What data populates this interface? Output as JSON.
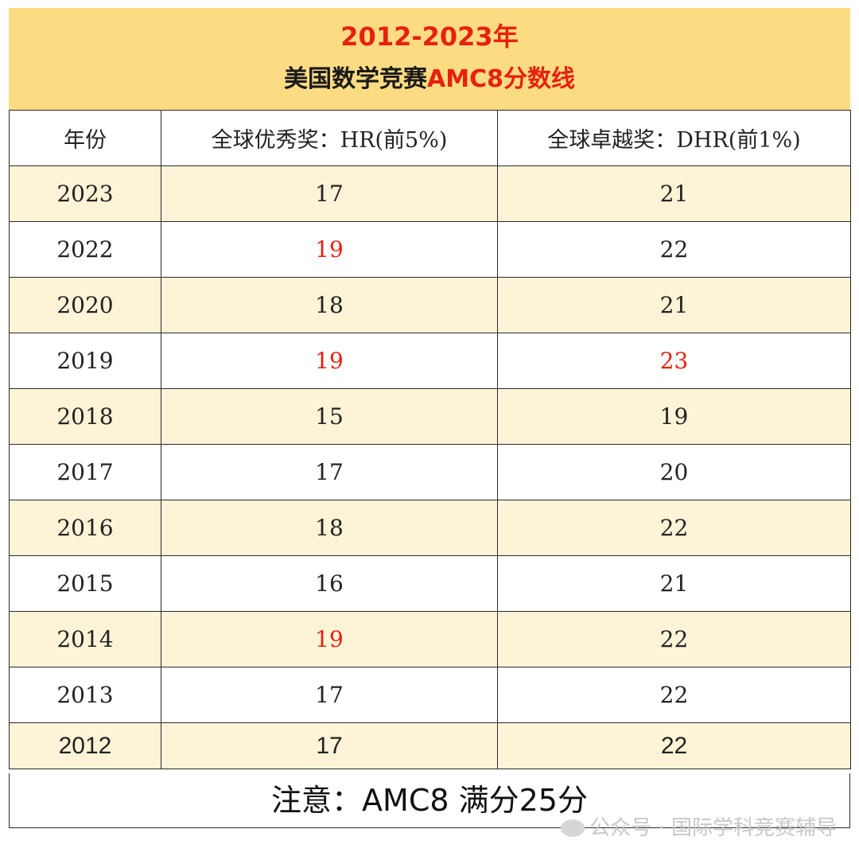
{
  "title": {
    "line1": "2012-2023年",
    "line2_prefix": "美国数学竞赛",
    "line2_accent": "AMC8分数线"
  },
  "columns": [
    "年份",
    "全球优秀奖：HR(前5%)",
    "全球卓越奖：DHR(前1%)"
  ],
  "rows": [
    {
      "year": "2023",
      "hr": "17",
      "dhr": "21"
    },
    {
      "year": "2022",
      "hr": "19",
      "dhr": "22"
    },
    {
      "year": "2020",
      "hr": "18",
      "dhr": "21"
    },
    {
      "year": "2019",
      "hr": "19",
      "dhr": "23"
    },
    {
      "year": "2018",
      "hr": "15",
      "dhr": "19"
    },
    {
      "year": "2017",
      "hr": "17",
      "dhr": "20"
    },
    {
      "year": "2016",
      "hr": "18",
      "dhr": "22"
    },
    {
      "year": "2015",
      "hr": "16",
      "dhr": "21"
    },
    {
      "year": "2014",
      "hr": "19",
      "dhr": "22"
    },
    {
      "year": "2013",
      "hr": "17",
      "dhr": "22"
    },
    {
      "year": "2012",
      "hr": "17",
      "dhr": "22"
    }
  ],
  "note": "注意：AMC8 满分25分",
  "watermark": "公众号 · 国际学科竞赛辅导",
  "colors": {
    "title_band": "#fcdc82",
    "shaded_row": "#fdf3d7",
    "highlight": "#e8200f"
  }
}
